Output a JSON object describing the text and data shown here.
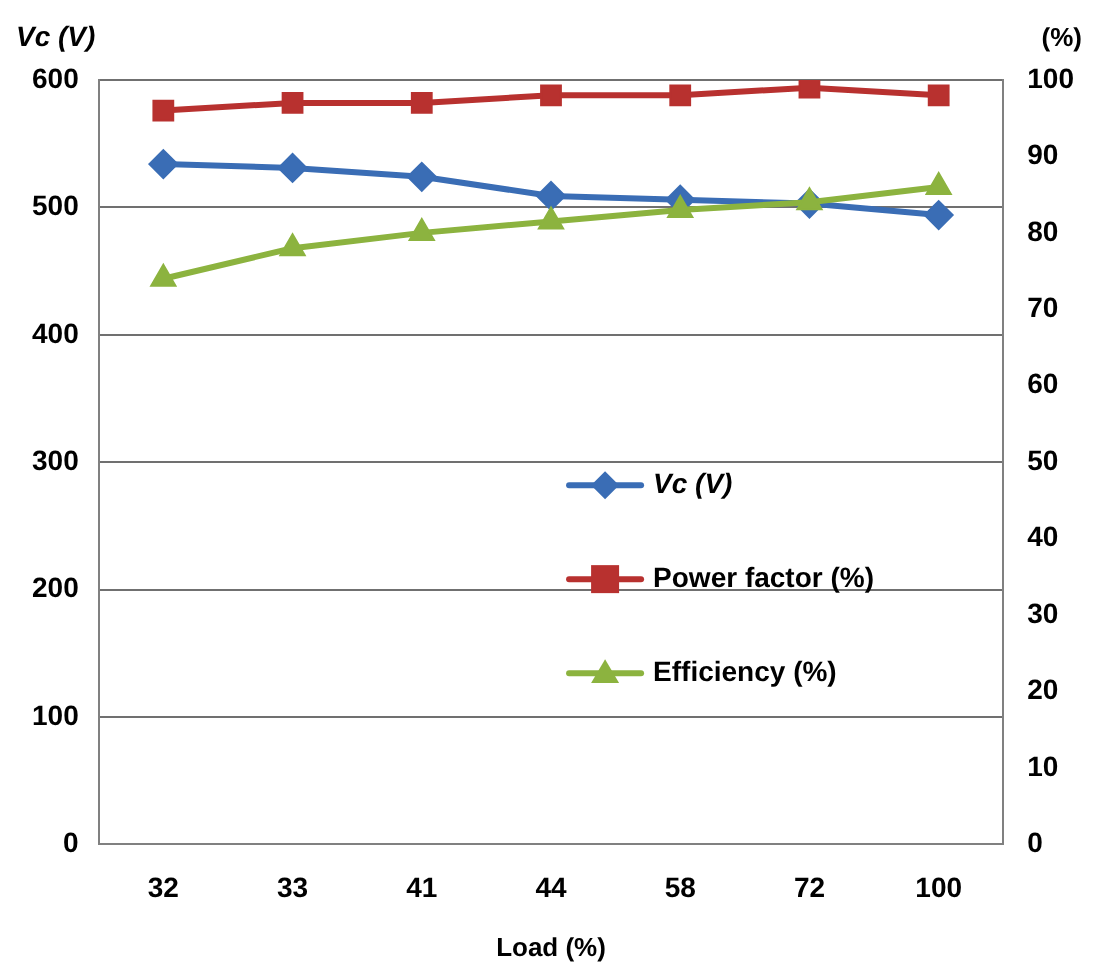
{
  "chart_data": {
    "type": "line",
    "ylabel": "Vc (V)",
    "y2label": "(%)",
    "xlabel": "Load (%)",
    "categories": [
      "32",
      "33",
      "41",
      "44",
      "58",
      "72",
      "100"
    ],
    "series": [
      {
        "name": "Vc (V)",
        "color": "#3a6db5",
        "marker": "diamond",
        "values": [
          534,
          531,
          524,
          509,
          506,
          503,
          494
        ]
      },
      {
        "name": "Power factor (%)",
        "color": "#b8312f",
        "marker": "square",
        "axis": "y2",
        "values": [
          96,
          97,
          97,
          98,
          98,
          99,
          98
        ]
      },
      {
        "name": "Efficiency (%)",
        "color": "#8cb33f",
        "marker": "triangle",
        "axis": "y2",
        "values": [
          74,
          78,
          80,
          81.5,
          83,
          84,
          86
        ]
      }
    ],
    "ylim": [
      0,
      600
    ],
    "yticks": [
      0,
      100,
      200,
      300,
      400,
      500,
      600
    ],
    "y2lim": [
      0,
      100
    ],
    "y2ticks": [
      0,
      10,
      20,
      30,
      40,
      50,
      60,
      70,
      80,
      90,
      100
    ],
    "grid": "y",
    "legend": "right"
  }
}
